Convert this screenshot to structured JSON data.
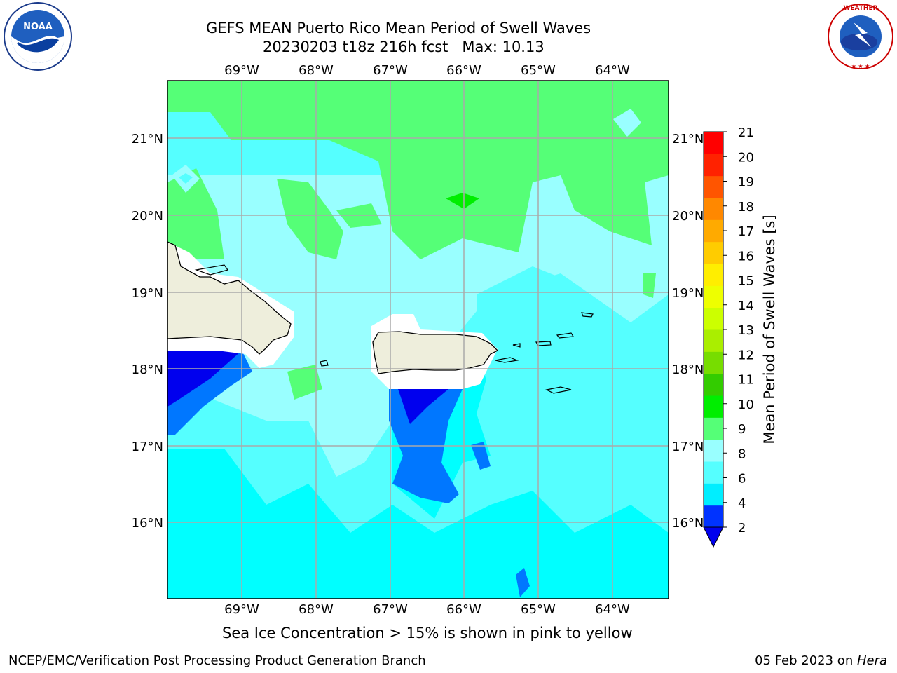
{
  "header": {
    "title_line1": "GEFS MEAN Puerto Rico Mean Period of Swell Waves",
    "title_line2": "20230203 t18z 216h fcst   Max: 10.13"
  },
  "logos": {
    "left": "NOAA",
    "right": "NATIONAL WEATHER SERVICE"
  },
  "map": {
    "lon_labels": [
      "69°W",
      "68°W",
      "67°W",
      "66°W",
      "65°W",
      "64°W"
    ],
    "lat_labels": [
      "21°N",
      "20°N",
      "19°N",
      "18°N",
      "17°N",
      "16°N"
    ]
  },
  "colorbar": {
    "label": "Mean Period of Swell Waves [s]",
    "ticks": [
      "2",
      "4",
      "6",
      "8",
      "9",
      "10",
      "11",
      "12",
      "13",
      "14",
      "15",
      "16",
      "17",
      "18",
      "19",
      "20",
      "21"
    ],
    "colors": [
      "#0033ff",
      "#00eeff",
      "#55ffff",
      "#99ffff",
      "#55ff77",
      "#00ee00",
      "#33cc00",
      "#77dd00",
      "#aaee00",
      "#ccff00",
      "#eeff00",
      "#ffee00",
      "#ffcc00",
      "#ffaa00",
      "#ff8800",
      "#ff5500",
      "#ff2200",
      "#ff0000"
    ],
    "extend_color": "#0000ee"
  },
  "footer": {
    "sea_ice_note": "Sea Ice Concentration > 15% is shown in pink to yellow",
    "producer": "NCEP/EMC/Verification Post Processing Product Generation Branch",
    "date": "05 Feb 2023 on ",
    "host": "Hera"
  }
}
